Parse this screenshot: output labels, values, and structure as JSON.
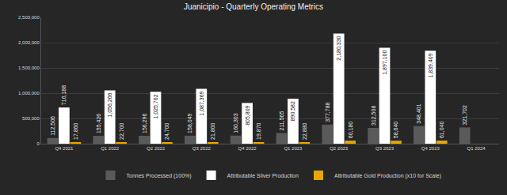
{
  "chart_data": {
    "type": "bar",
    "title": "Juanicipio - Quarterly Operating Metrics",
    "categories": [
      "Q4 2021",
      "Q1 2022",
      "Q2 2022",
      "Q3 2022",
      "Q4 2022",
      "Q1 2023",
      "Q2 2023",
      "Q3 2023",
      "Q4 2023",
      "Q1 2024"
    ],
    "series": [
      {
        "name": "Tonnes Processed (100%)",
        "color": "#5a5a5a",
        "values": [
          112506,
          155426,
          156296,
          158049,
          160303,
          211565,
          377788,
          312508,
          348401,
          321702
        ],
        "value_labels": [
          "112,506",
          "155,426",
          "156,296",
          "158,049",
          "160,303",
          "211,565",
          "377,788",
          "312,508",
          "348,401",
          "321,702"
        ]
      },
      {
        "name": "Attributable Silver Production",
        "color": "#ffffff",
        "values": [
          716188,
          1056266,
          1025762,
          1087369,
          805809,
          890582,
          2180330,
          1897100,
          1839409,
          null
        ],
        "value_labels": [
          "716,188",
          "1,056,266",
          "1,025,762",
          "1,087,369",
          "805,809",
          "890,582",
          "2,180,330",
          "1,897,100",
          "1,839,409",
          null
        ]
      },
      {
        "name": "Attributable Gold Production (x10 for Scale)",
        "color": "#e8a800",
        "values": [
          17860,
          22700,
          24700,
          21800,
          19870,
          22880,
          60180,
          58640,
          61040,
          null
        ],
        "value_labels": [
          "17,860",
          "22,700",
          "24,700",
          "21,800",
          "19,870",
          "22,880",
          "60,180",
          "58,640",
          "61,040",
          null
        ]
      }
    ],
    "ylim": [
      0,
      2500000
    ],
    "yticks": [
      0,
      {
        "value": 500000,
        "label": "500,000"
      },
      {
        "value": 1000000,
        "label": "1,000,000"
      },
      {
        "value": 1500000,
        "label": "1,500,000"
      },
      {
        "value": 2000000,
        "label": "2,000,000"
      },
      {
        "value": 2500000,
        "label": "2,500,000"
      }
    ],
    "grid": true,
    "legend": "bottom",
    "data_labels": true
  }
}
